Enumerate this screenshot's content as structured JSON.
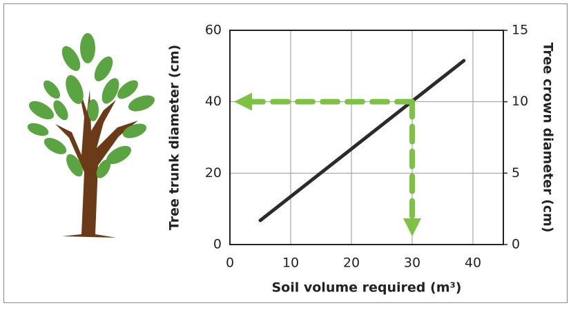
{
  "chart_data": {
    "type": "line",
    "x": [
      5,
      38.5
    ],
    "values": [
      6.75,
      51.5
    ],
    "color": "#2b2b2b",
    "xlabel": "Soil volume required (m³)",
    "ylabel": "Tree trunk diameter (cm)",
    "y2label": "Tree crown diameter (cm)",
    "xlim": [
      0,
      45
    ],
    "xticks": [
      0,
      10,
      20,
      30,
      40
    ],
    "ylim": [
      0,
      60
    ],
    "yticks": [
      0,
      20,
      40,
      60
    ],
    "y2lim": [
      0,
      15
    ],
    "y2ticks": [
      0,
      5,
      10,
      15
    ],
    "grid": true,
    "guide": {
      "x": 30,
      "y": 40,
      "color": "#7dc242"
    }
  }
}
